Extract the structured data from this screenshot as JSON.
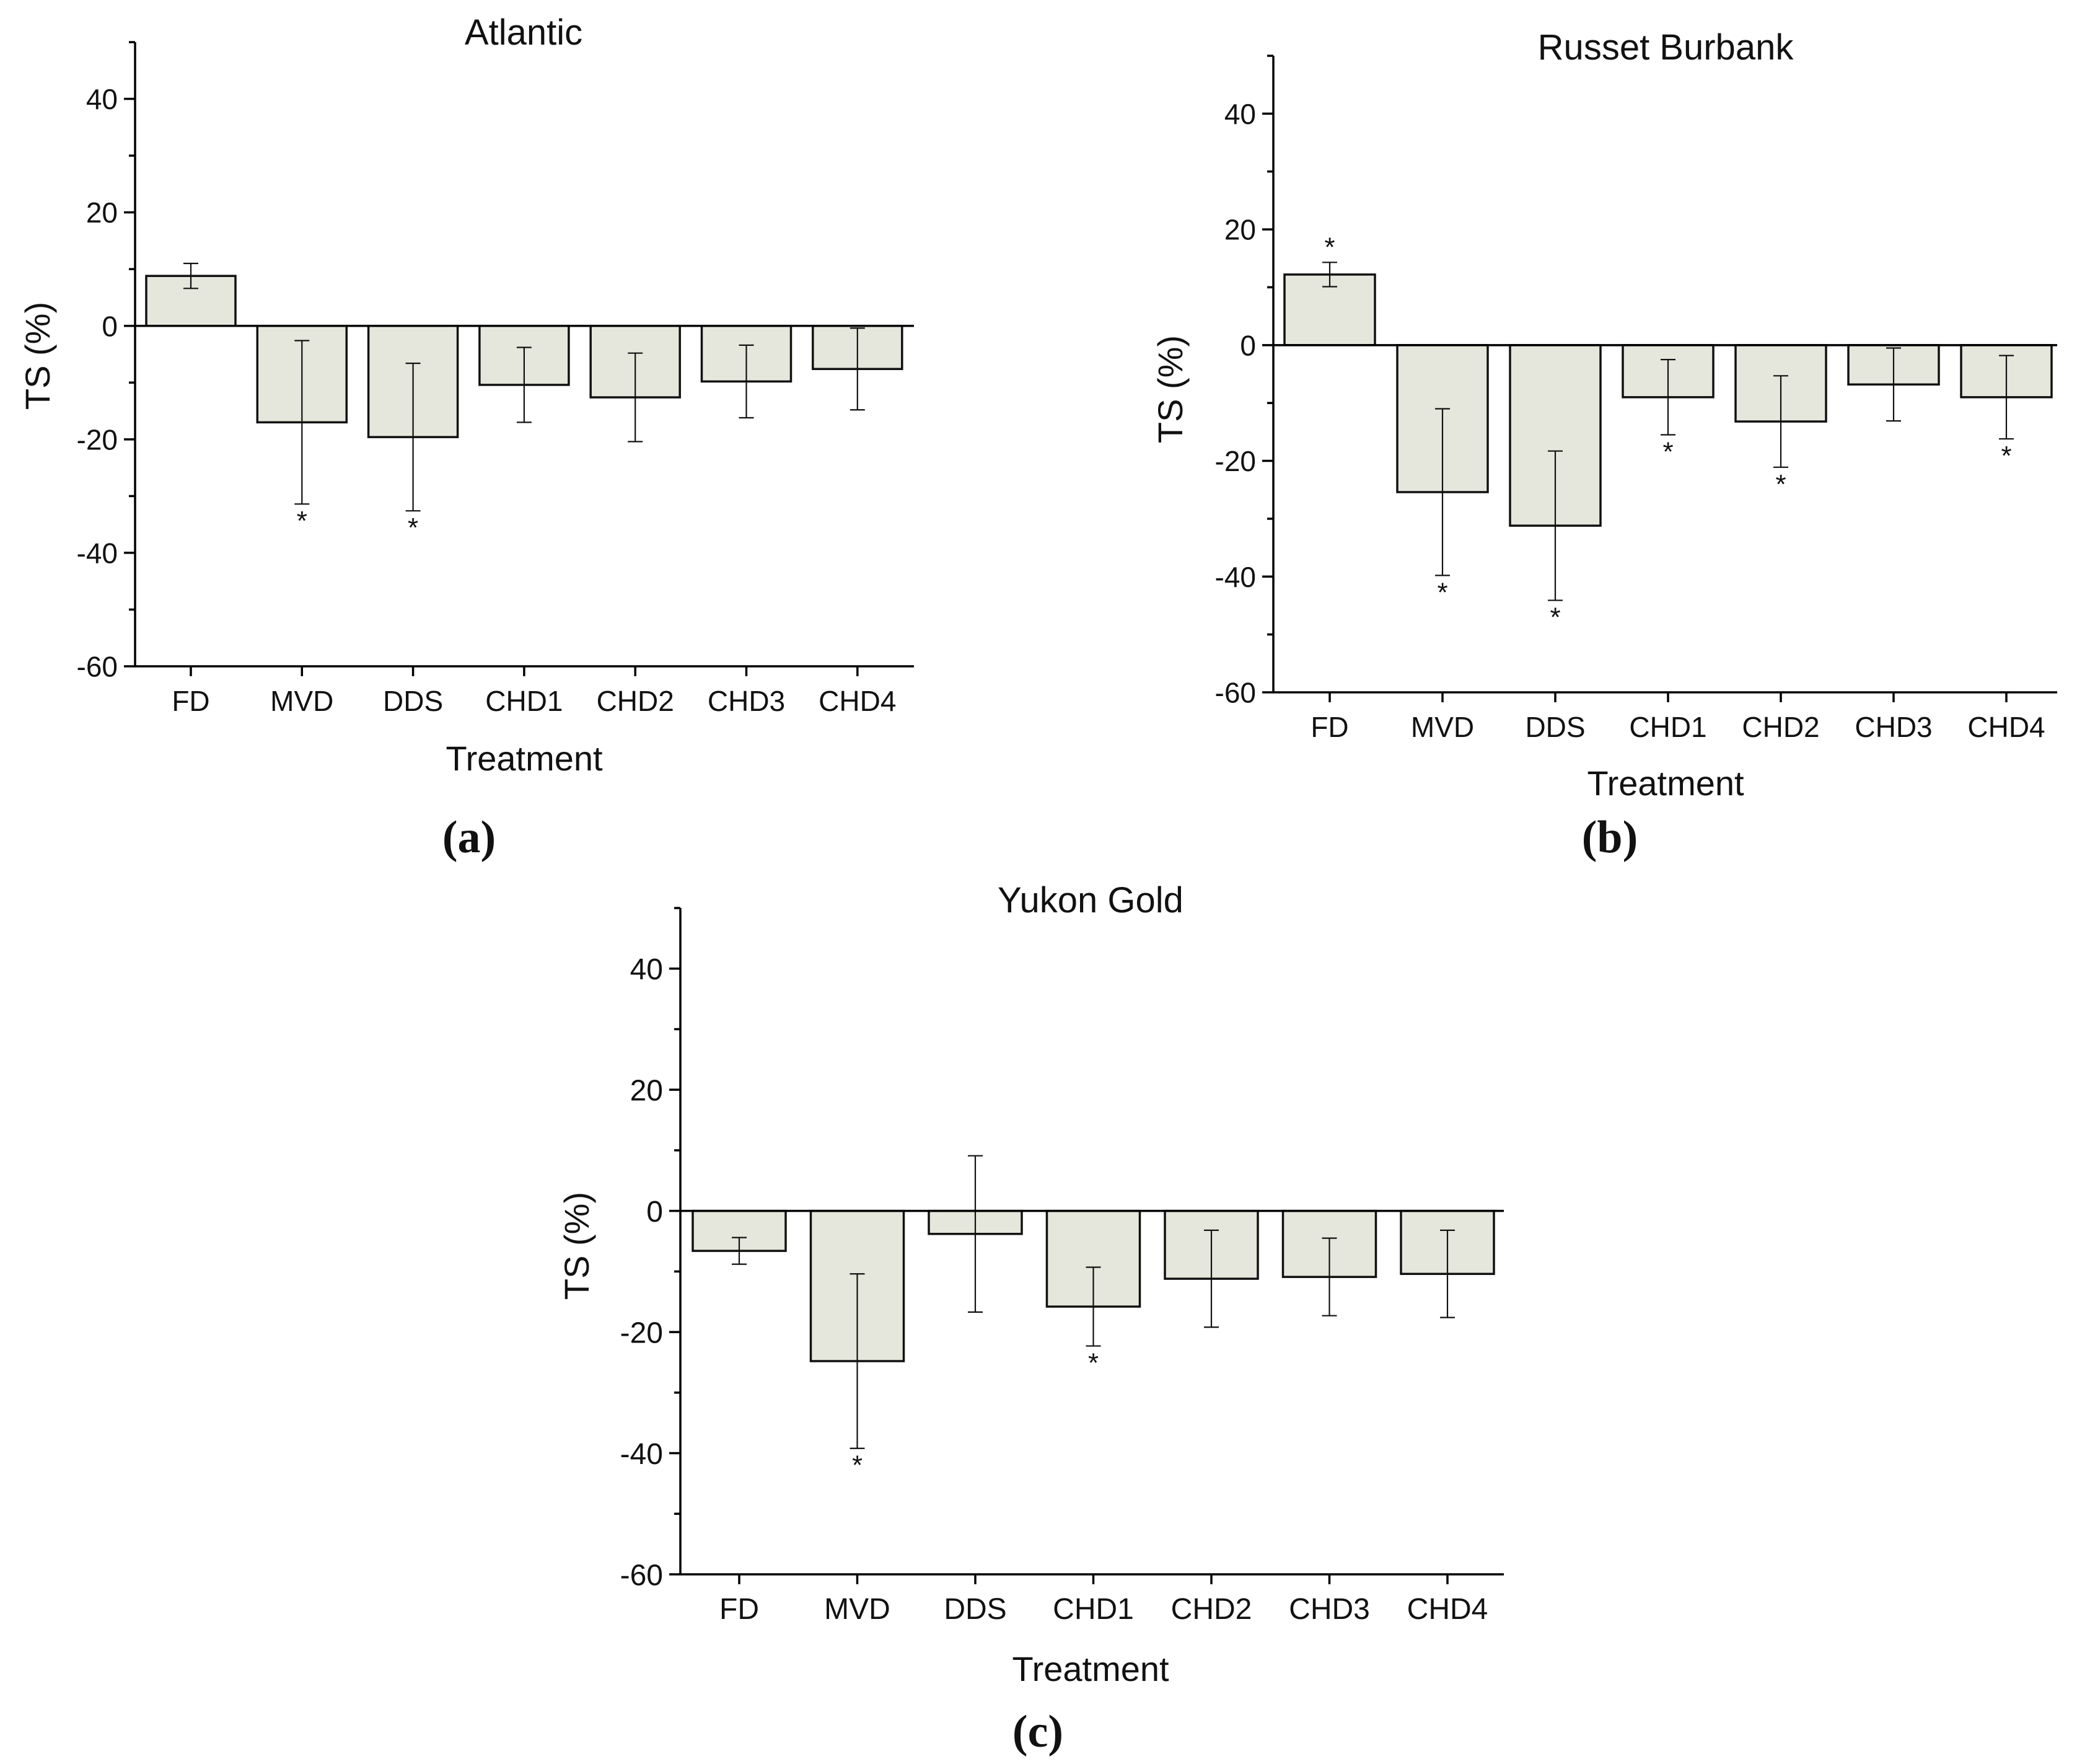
{
  "panel_labels": {
    "a": "(a)",
    "b": "(b)",
    "c": "(c)"
  },
  "colors": {
    "bar_fill": "#e6e7dc",
    "bar_stroke": "#111111",
    "axis": "#000000"
  },
  "chart_data": [
    {
      "id": "a",
      "type": "bar",
      "title": "Atlantic",
      "xlabel": "Treatment",
      "ylabel": "TS (%)",
      "ylim": [
        -60,
        50
      ],
      "yticks": [
        40,
        20,
        0,
        -20,
        -40,
        -60
      ],
      "ytick_labels": [
        "40",
        "20",
        "0",
        "-20",
        "-40",
        "-60"
      ],
      "categories": [
        "FD",
        "MVD",
        "DDS",
        "CHD1",
        "CHD2",
        "CHD3",
        "CHD4"
      ],
      "values": [
        8.8,
        -17,
        -19.6,
        -10.4,
        -12.6,
        -9.8,
        -7.6
      ],
      "errors": [
        2.2,
        14.4,
        13,
        6.6,
        7.8,
        6.4,
        7.2
      ],
      "significance": [
        "",
        "*",
        "*",
        "",
        "",
        "",
        ""
      ]
    },
    {
      "id": "b",
      "type": "bar",
      "title": "Russet Burbank",
      "xlabel": "Treatment",
      "ylabel": "TS (%)",
      "ylim": [
        -60,
        50
      ],
      "yticks": [
        40,
        20,
        0,
        -20,
        -40,
        -60
      ],
      "ytick_labels": [
        "40",
        "20",
        "0",
        "-20",
        "-40",
        "-60"
      ],
      "categories": [
        "FD",
        "MVD",
        "DDS",
        "CHD1",
        "CHD2",
        "CHD3",
        "CHD4"
      ],
      "values": [
        12.2,
        -25.4,
        -31.2,
        -9,
        -13.2,
        -6.8,
        -9
      ],
      "errors": [
        2.1,
        14.4,
        12.9,
        6.5,
        7.9,
        6.3,
        7.2
      ],
      "significance": [
        "*",
        "*",
        "*",
        "*",
        "*",
        "",
        "*"
      ]
    },
    {
      "id": "c",
      "type": "bar",
      "title": "Yukon Gold",
      "xlabel": "Treatment",
      "ylabel": "TS (%)",
      "ylim": [
        -60,
        50
      ],
      "yticks": [
        40,
        20,
        0,
        -20,
        -40,
        -60
      ],
      "ytick_labels": [
        "40",
        "20",
        "0",
        "-20",
        "-40",
        "-60"
      ],
      "categories": [
        "FD",
        "MVD",
        "DDS",
        "CHD1",
        "CHD2",
        "CHD3",
        "CHD4"
      ],
      "values": [
        -6.6,
        -24.8,
        -3.8,
        -15.8,
        -11.2,
        -10.9,
        -10.4
      ],
      "errors": [
        2.2,
        14.4,
        12.9,
        6.5,
        8,
        6.4,
        7.2
      ],
      "significance": [
        "",
        "*",
        "",
        "*",
        "",
        "",
        ""
      ]
    }
  ]
}
